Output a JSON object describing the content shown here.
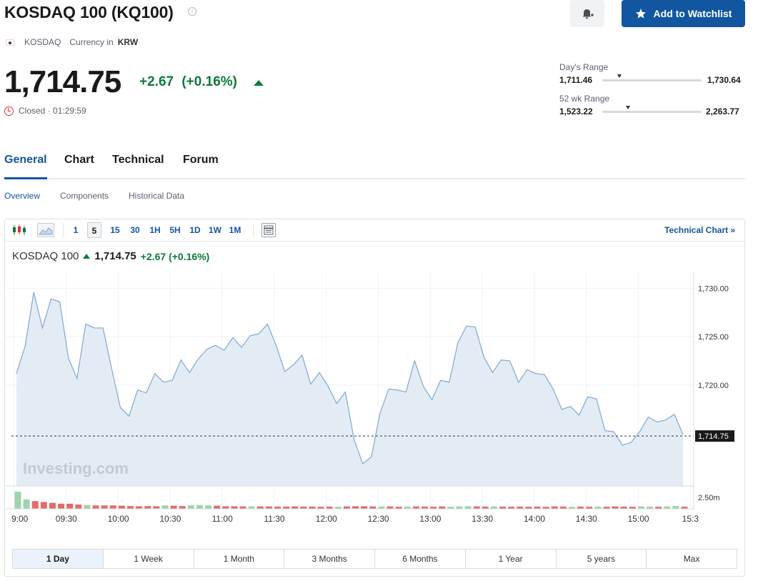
{
  "header": {
    "title": "KOSDAQ 100 (KQ100)",
    "info_glyph": "i",
    "watchlist_label": "Add to Watchlist",
    "bell_icon": "bell-plus-icon",
    "star_icon": "star-icon"
  },
  "meta": {
    "exchange": "KOSDAQ",
    "currency_prefix": "Currency in",
    "currency_code": "KRW",
    "flag_icon": "south-korea-flag-icon"
  },
  "quote": {
    "price": "1,714.75",
    "change": "+2.67",
    "change_pct": "(+0.16%)",
    "status": "Closed · 01:29:59",
    "up_color": "#0e7a38"
  },
  "ranges": {
    "day": {
      "label": "Day's Range",
      "low": "1,711.46",
      "high": "1,730.64",
      "current_fraction": 0.17
    },
    "week52": {
      "label": "52 wk Range",
      "low": "1,523.22",
      "high": "2,263.77",
      "current_fraction": 0.26
    }
  },
  "tabs": [
    "General",
    "Chart",
    "Technical",
    "Forum"
  ],
  "active_tab": "General",
  "subtabs": [
    "Overview",
    "Components",
    "Historical Data"
  ],
  "active_subtab": "Overview",
  "toolbar": {
    "intervals": [
      "1",
      "5",
      "15",
      "30",
      "1H",
      "5H",
      "1D",
      "1W",
      "1M"
    ],
    "active_interval": "5",
    "technical_chart_label": "Technical Chart »"
  },
  "legend": {
    "name": "KOSDAQ 100",
    "price": "1,714.75",
    "change": "+2.67 (+0.16%)"
  },
  "chart_data": {
    "type": "area",
    "x_tick_labels": [
      "9:00",
      "09:30",
      "10:00",
      "10:30",
      "11:00",
      "11:30",
      "12:00",
      "12:30",
      "13:00",
      "13:30",
      "14:00",
      "14:30",
      "15:00",
      "15:3"
    ],
    "y_tick_labels": [
      "1,730.00",
      "1,725.00",
      "1,720.00"
    ],
    "ylim": [
      1709.6,
      1731.5
    ],
    "y_ticks": [
      1730,
      1725,
      1720
    ],
    "last_price": 1714.75,
    "last_price_label": "1,714.75",
    "volume_label": "2.50m",
    "watermark": "Investing.com",
    "values": [
      1721.2,
      1724,
      1729.6,
      1725.9,
      1728.9,
      1728.6,
      1722.8,
      1720.7,
      1726.3,
      1725.9,
      1725.9,
      1721.7,
      1717.7,
      1716.8,
      1719.5,
      1719.2,
      1721.2,
      1720.3,
      1720.5,
      1722.6,
      1721.3,
      1722.7,
      1723.7,
      1724.1,
      1723.6,
      1724.9,
      1723.9,
      1725.1,
      1725.3,
      1726.3,
      1724.1,
      1721.4,
      1722.1,
      1723.1,
      1720.1,
      1721.3,
      1719.9,
      1718.1,
      1719.3,
      1714.4,
      1711.9,
      1712.6,
      1717.1,
      1719.6,
      1719.5,
      1719.3,
      1722.5,
      1719.9,
      1718.5,
      1720.5,
      1720.3,
      1724.4,
      1726.1,
      1726.0,
      1722.9,
      1721.3,
      1722.6,
      1722.5,
      1720.3,
      1721.6,
      1721.2,
      1721.1,
      1719.6,
      1717.5,
      1717.8,
      1716.9,
      1718.8,
      1718.6,
      1715.3,
      1715.2,
      1713.8,
      1714.1,
      1715.2,
      1716.7,
      1716.2,
      1716.4,
      1717.0,
      1714.9
    ],
    "volumes": [
      1.0,
      0.55,
      0.45,
      0.4,
      0.35,
      0.3,
      0.3,
      0.25,
      0.22,
      0.2,
      0.2,
      0.2,
      0.18,
      0.16,
      0.15,
      0.16,
      0.15,
      0.2,
      0.18,
      0.16,
      0.2,
      0.22,
      0.2,
      0.18,
      0.15,
      0.15,
      0.14,
      0.15,
      0.14,
      0.14,
      0.13,
      0.13,
      0.14,
      0.13,
      0.13,
      0.12,
      0.13,
      0.12,
      0.14,
      0.15,
      0.15,
      0.14,
      0.13,
      0.14,
      0.12,
      0.13,
      0.14,
      0.13,
      0.12,
      0.14,
      0.12,
      0.14,
      0.15,
      0.14,
      0.13,
      0.14,
      0.13,
      0.12,
      0.13,
      0.12,
      0.13,
      0.12,
      0.14,
      0.13,
      0.12,
      0.13,
      0.12,
      0.13,
      0.12,
      0.14,
      0.13,
      0.12,
      0.14,
      0.13,
      0.12,
      0.14,
      0.16,
      0.12
    ],
    "volume_up": [
      true,
      true,
      false,
      false,
      false,
      false,
      false,
      false,
      true,
      false,
      false,
      false,
      false,
      false,
      false,
      false,
      false,
      true,
      false,
      false,
      true,
      true,
      true,
      false,
      false,
      false,
      false,
      true,
      false,
      false,
      false,
      false,
      false,
      false,
      false,
      false,
      false,
      true,
      false,
      false,
      false,
      false,
      true,
      false,
      false,
      true,
      false,
      false,
      false,
      false,
      true,
      true,
      true,
      false,
      false,
      true,
      false,
      false,
      false,
      false,
      false,
      false,
      false,
      false,
      true,
      false,
      false,
      true,
      false,
      false,
      false,
      false,
      true,
      true,
      false,
      true,
      true,
      false
    ],
    "colors": {
      "line": "#7fa8d1",
      "fill": "#e3ecf5",
      "vol_up": "#9fd3ad",
      "vol_down": "#e46b6b"
    }
  },
  "periods": [
    "1 Day",
    "1 Week",
    "1 Month",
    "3 Months",
    "6 Months",
    "1 Year",
    "5 years",
    "Max"
  ],
  "active_period": "1 Day"
}
